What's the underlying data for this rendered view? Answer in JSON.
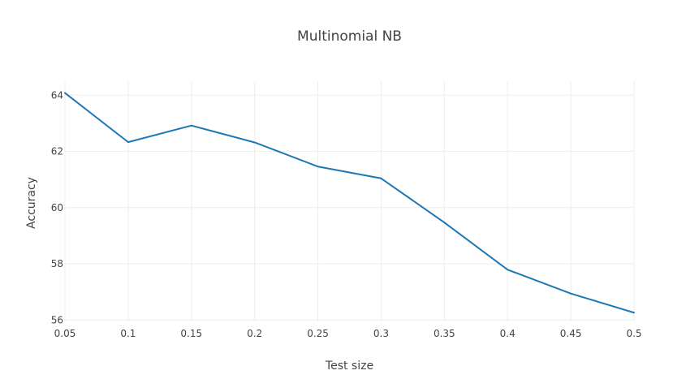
{
  "chart_data": {
    "type": "line",
    "title": "Multinomial NB",
    "xlabel": "Test size",
    "ylabel": "Accuracy",
    "x": [
      0.05,
      0.1,
      0.15,
      0.2,
      0.25,
      0.3,
      0.35,
      0.4,
      0.45,
      0.5
    ],
    "series": [
      {
        "values": [
          64.08,
          62.33,
          62.92,
          62.32,
          61.46,
          61.04,
          59.47,
          57.79,
          56.94,
          56.26
        ]
      }
    ],
    "xlim": [
      0.05,
      0.5
    ],
    "ylim": [
      55.95,
      64.5
    ],
    "x_ticks": [
      "0.05",
      "0.1",
      "0.15",
      "0.2",
      "0.25",
      "0.3",
      "0.35",
      "0.4",
      "0.45",
      "0.5"
    ],
    "x_tick_values": [
      0.05,
      0.1,
      0.15,
      0.2,
      0.25,
      0.3,
      0.35,
      0.4,
      0.45,
      0.5
    ],
    "y_ticks": [
      "56",
      "58",
      "60",
      "62",
      "64"
    ],
    "y_tick_values": [
      56,
      58,
      60,
      62,
      64
    ],
    "grid": true,
    "line_color": "#1f77b4",
    "grid_color": "#eeeeee",
    "text_color": "#444444"
  }
}
